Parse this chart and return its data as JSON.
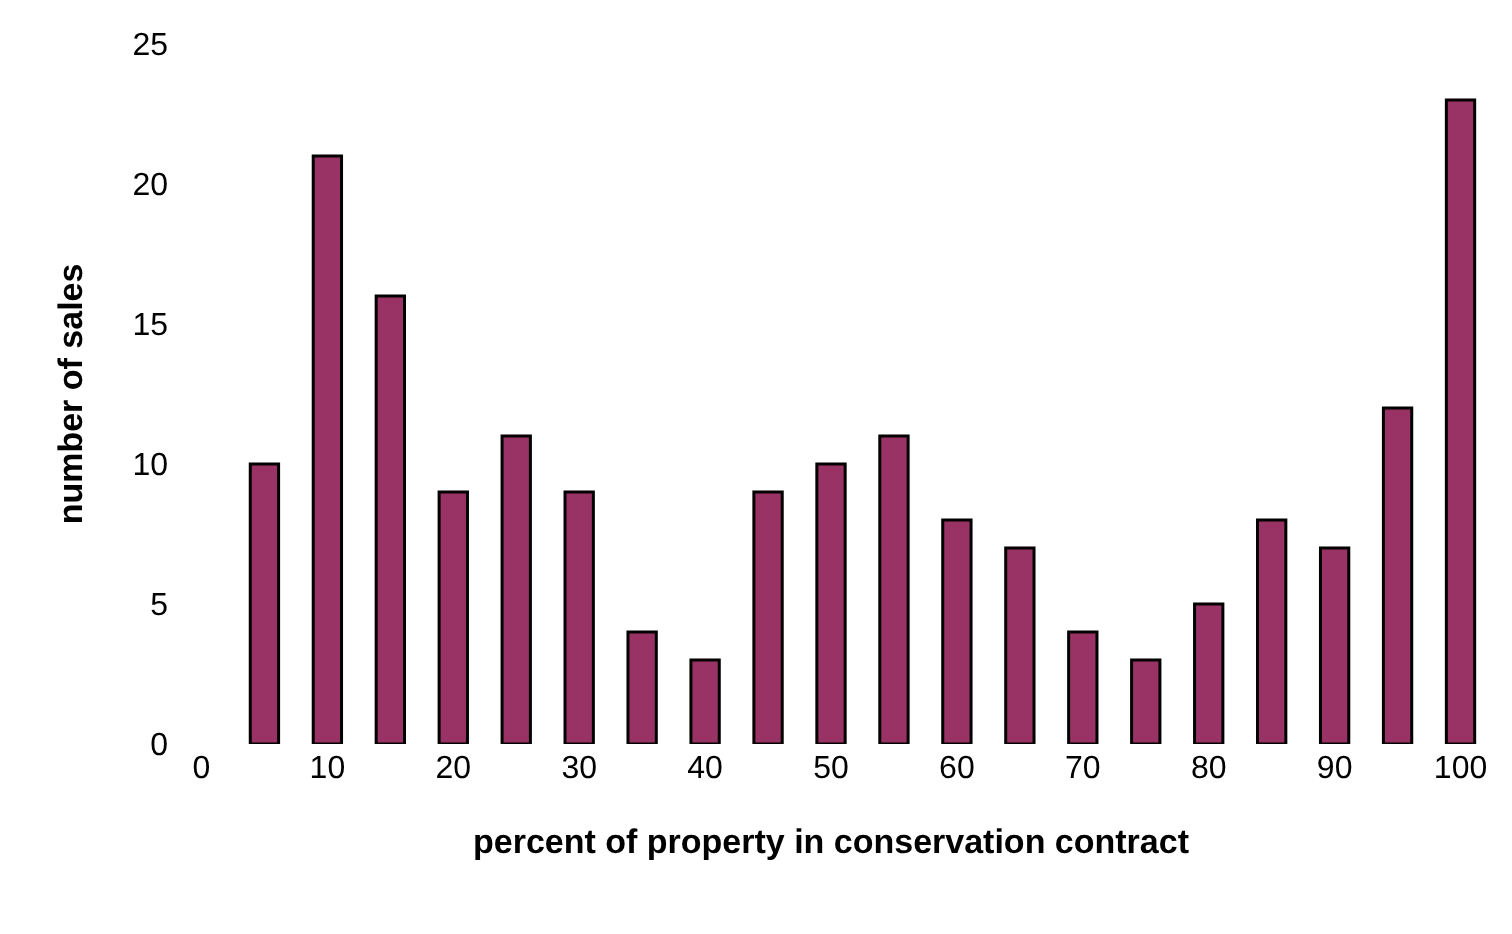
{
  "chart_data": {
    "type": "bar",
    "xlabel": "percent of property in conservation contract",
    "ylabel": "number of sales",
    "categories": [
      "0",
      null,
      "10",
      null,
      "20",
      null,
      "30",
      null,
      "40",
      null,
      "50",
      null,
      "60",
      null,
      "70",
      null,
      "80",
      null,
      "90",
      null,
      "100"
    ],
    "values": [
      null,
      10,
      21,
      16,
      9,
      11,
      9,
      4,
      3,
      9,
      10,
      11,
      8,
      7,
      4,
      3,
      5,
      8,
      7,
      12,
      23
    ],
    "color": "#993366",
    "ylim": [
      0,
      25
    ],
    "yticks": [
      0,
      5,
      10,
      15,
      20,
      25
    ]
  }
}
